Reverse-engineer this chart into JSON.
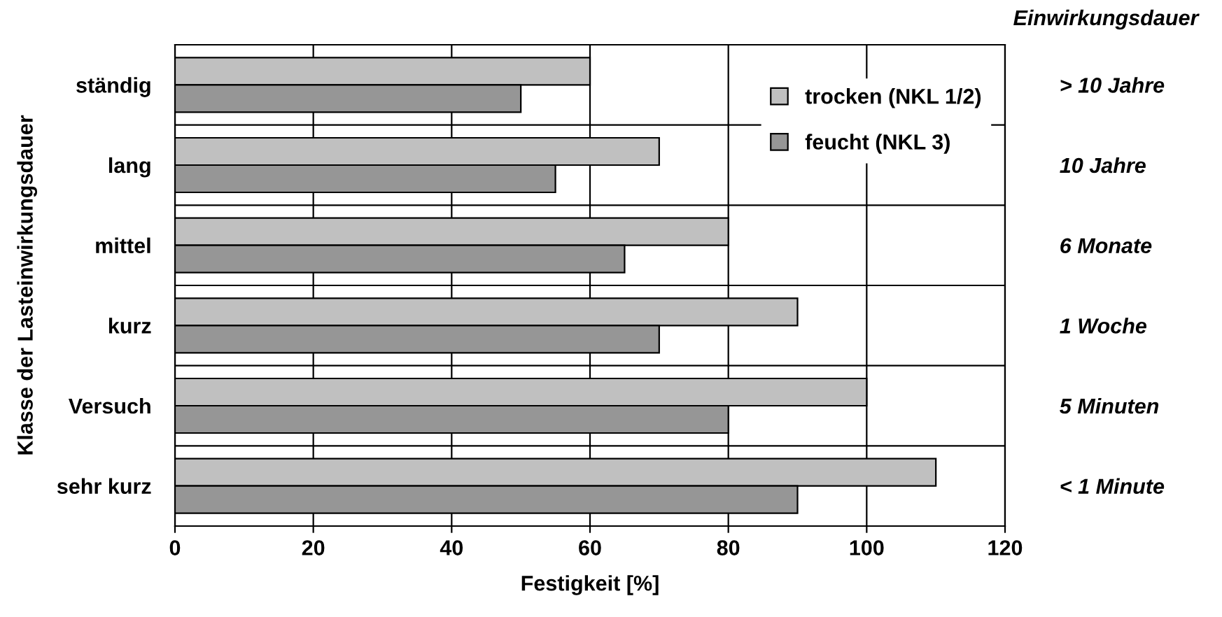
{
  "chart_data": {
    "type": "bar",
    "orientation": "horizontal",
    "categories": [
      "ständig",
      "lang",
      "mittel",
      "kurz",
      "Versuch",
      "sehr kurz"
    ],
    "y2_categories": [
      "> 10 Jahre",
      "10 Jahre",
      "6 Monate",
      "1 Woche",
      "5 Minuten",
      "< 1 Minute"
    ],
    "y2label": "Einwirkungsdauer",
    "xlabel": "Festigkeit [%]",
    "ylabel": "Klasse der Lasteinwirkungsdauer",
    "series": [
      {
        "name": "trocken (NKL 1/2)",
        "color": "#c0c0c0",
        "values": [
          60,
          70,
          80,
          90,
          100,
          110
        ]
      },
      {
        "name": "feucht (NKL 3)",
        "color": "#969696",
        "values": [
          50,
          55,
          65,
          70,
          80,
          90
        ]
      }
    ],
    "xlim": [
      0,
      120
    ],
    "xticks": [
      0,
      20,
      40,
      60,
      80,
      100,
      120
    ],
    "grid": true,
    "legend": "top right"
  }
}
